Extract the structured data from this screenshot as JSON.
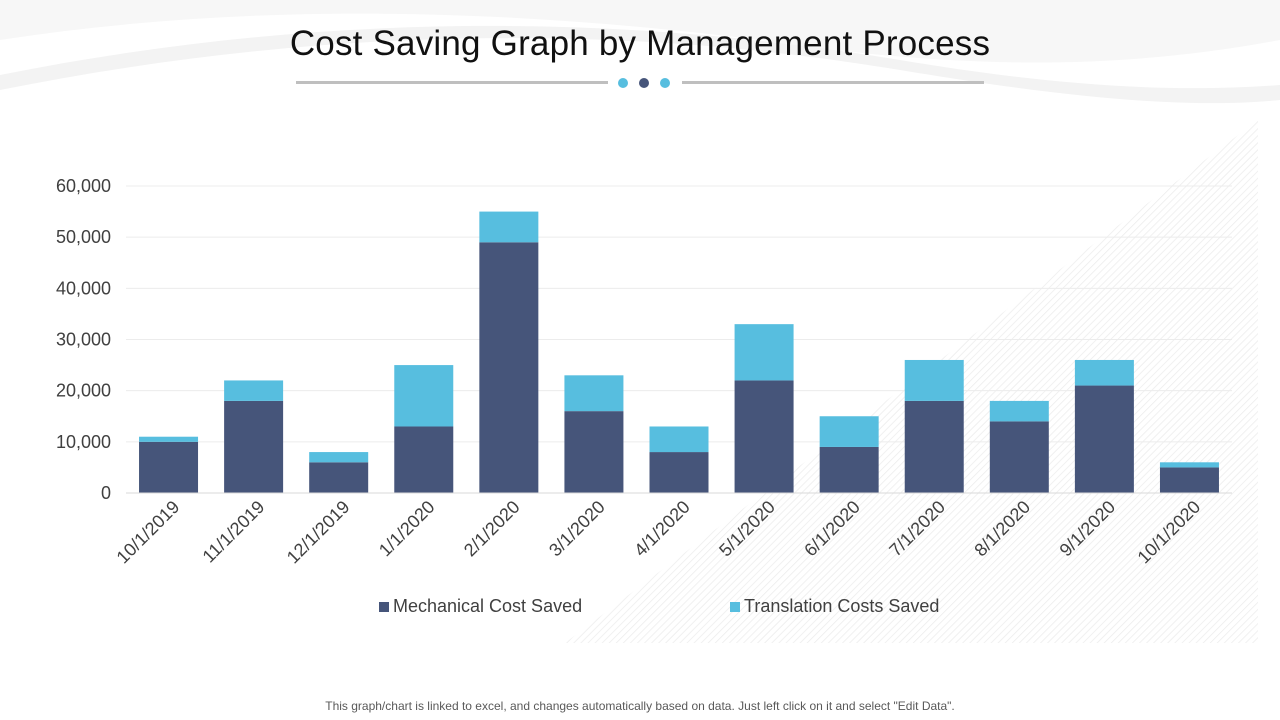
{
  "header": {
    "title": "Cost Saving Graph by Management Process"
  },
  "colors": {
    "mechanical": "#46557a",
    "translation": "#57bedf",
    "dot_light": "#57bedf",
    "dot_dark": "#46557a"
  },
  "chart_data": {
    "type": "bar",
    "stacked": true,
    "categories": [
      "10/1/2019",
      "11/1/2019",
      "12/1/2019",
      "1/1/2020",
      "2/1/2020",
      "3/1/2020",
      "4/1/2020",
      "5/1/2020",
      "6/1/2020",
      "7/1/2020",
      "8/1/2020",
      "9/1/2020",
      "10/1/2020"
    ],
    "series": [
      {
        "name": "Mechanical Cost Saved",
        "values": [
          10000,
          18000,
          6000,
          13000,
          49000,
          16000,
          8000,
          22000,
          9000,
          18000,
          14000,
          21000,
          5000
        ]
      },
      {
        "name": "Translation Costs Saved",
        "values": [
          1000,
          4000,
          2000,
          12000,
          6000,
          7000,
          5000,
          11000,
          6000,
          8000,
          4000,
          5000,
          1000
        ]
      }
    ],
    "ylim": [
      0,
      60000
    ],
    "yticks": [
      "0",
      "10,000",
      "20,000",
      "30,000",
      "40,000",
      "50,000",
      "60,000"
    ],
    "grid": true,
    "legend_position": "bottom"
  },
  "legend": {
    "mechanical": "Mechanical Cost Saved",
    "translation": "Translation Costs Saved"
  },
  "footer": {
    "note": "This graph/chart is linked to excel, and changes automatically  based on data. Just left click on it and select \"Edit Data\"."
  }
}
